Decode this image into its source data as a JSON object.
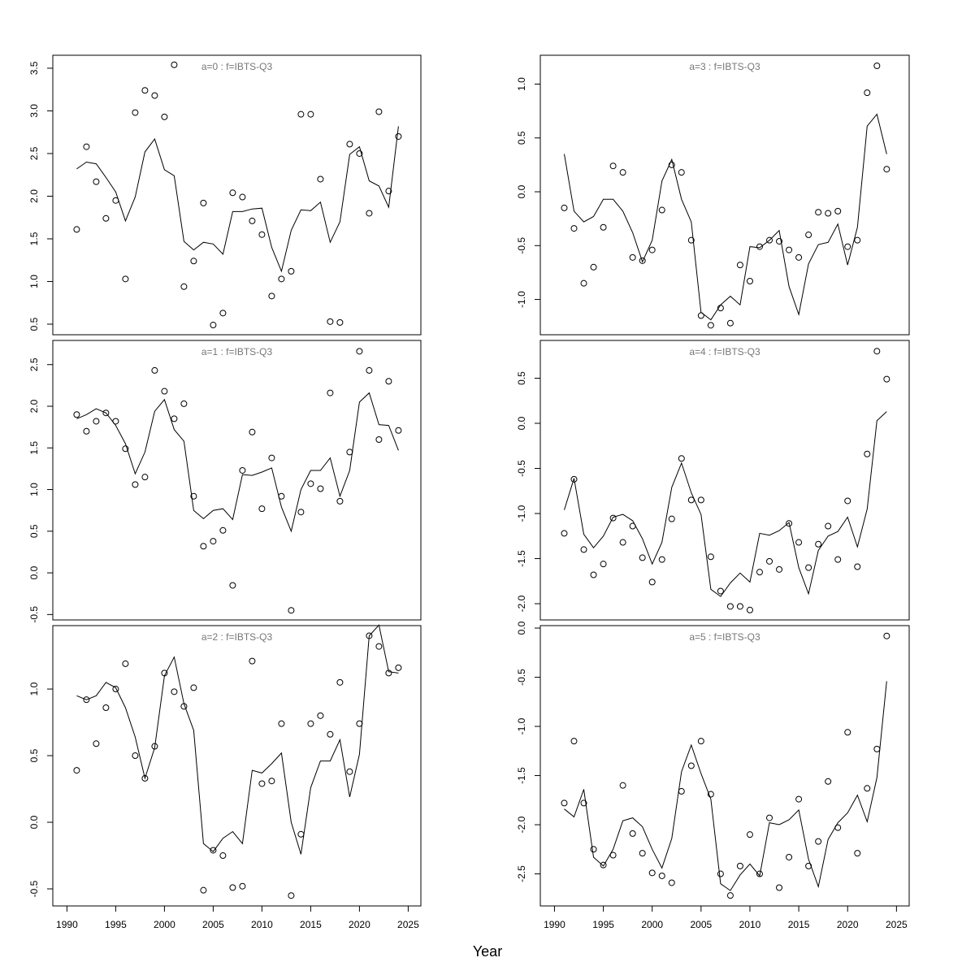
{
  "xlabel": "Year",
  "chart_data": [
    {
      "type": "line",
      "title": "a=0  :  f=IBTS-Q3",
      "x": [
        1991,
        1992,
        1993,
        1994,
        1995,
        1996,
        1997,
        1998,
        1999,
        2000,
        2001,
        2002,
        2003,
        2004,
        2005,
        2006,
        2007,
        2008,
        2009,
        2010,
        2011,
        2012,
        2013,
        2014,
        2015,
        2016,
        2017,
        2018,
        2019,
        2020,
        2021,
        2022,
        2023,
        2024
      ],
      "series": [
        {
          "style": "line",
          "color": "#000000",
          "values": [
            2.32,
            2.4,
            2.38,
            2.22,
            2.05,
            1.71,
            1.99,
            2.52,
            2.67,
            2.31,
            2.24,
            1.47,
            1.37,
            1.46,
            1.44,
            1.32,
            1.82,
            1.82,
            1.85,
            1.86,
            1.4,
            1.12,
            1.6,
            1.84,
            1.83,
            1.93,
            1.46,
            1.7,
            2.49,
            2.58,
            2.18,
            2.12,
            1.87,
            2.82
          ]
        },
        {
          "style": "points",
          "color": "#000000",
          "values": [
            1.61,
            2.58,
            2.17,
            1.74,
            1.95,
            1.03,
            2.98,
            3.24,
            3.18,
            2.93,
            3.54,
            0.94,
            1.24,
            1.92,
            0.49,
            0.63,
            2.04,
            1.99,
            1.71,
            1.55,
            0.83,
            1.03,
            1.12,
            2.96,
            2.96,
            2.2,
            0.53,
            0.52,
            2.61,
            2.5,
            1.8,
            2.99,
            2.06,
            2.7
          ]
        }
      ],
      "xlim": [
        1988.55,
        2026.3
      ],
      "ylim": [
        0.376,
        3.652
      ],
      "yticks": [
        0.5,
        {
          "value": 1,
          "label": "1.0"
        },
        1.5,
        {
          "value": 2,
          "label": "2.0"
        },
        2.5,
        {
          "value": 3,
          "label": "3.0"
        },
        3.5
      ]
    },
    {
      "type": "line",
      "title": "a=1  :  f=IBTS-Q3",
      "x": [
        1991,
        1992,
        1993,
        1994,
        1995,
        1996,
        1997,
        1998,
        1999,
        2000,
        2001,
        2002,
        2003,
        2004,
        2005,
        2006,
        2007,
        2008,
        2009,
        2010,
        2011,
        2012,
        2013,
        2014,
        2015,
        2016,
        2017,
        2018,
        2019,
        2020,
        2021,
        2022,
        2023,
        2024
      ],
      "series": [
        {
          "style": "line",
          "color": "#000000",
          "values": [
            1.85,
            1.9,
            1.97,
            1.92,
            1.77,
            1.55,
            1.19,
            1.45,
            1.94,
            2.08,
            1.72,
            1.58,
            0.75,
            0.65,
            0.75,
            0.77,
            0.64,
            1.18,
            1.17,
            1.21,
            1.26,
            0.79,
            0.5,
            1.0,
            1.23,
            1.23,
            1.38,
            0.92,
            1.23,
            2.05,
            2.16,
            1.78,
            1.77,
            1.47
          ]
        },
        {
          "style": "points",
          "color": "#000000",
          "values": [
            1.9,
            1.7,
            1.82,
            1.92,
            1.82,
            1.49,
            1.06,
            1.15,
            2.43,
            2.18,
            1.85,
            2.03,
            0.92,
            0.32,
            0.38,
            0.51,
            -0.15,
            1.23,
            1.69,
            0.77,
            1.38,
            0.92,
            -0.45,
            0.73,
            1.07,
            1.01,
            2.16,
            0.86,
            1.45,
            2.66,
            2.43,
            1.6,
            2.3,
            1.71
          ]
        }
      ],
      "xlim": [
        1988.55,
        2026.3
      ],
      "ylim": [
        -0.565,
        2.79
      ],
      "yticks": [
        -0.5,
        {
          "value": 0,
          "label": "0.0"
        },
        0.5,
        {
          "value": 1,
          "label": "1.0"
        },
        1.5,
        {
          "value": 2,
          "label": "2.0"
        },
        2.5
      ]
    },
    {
      "type": "line",
      "title": "a=2  :  f=IBTS-Q3",
      "x": [
        1991,
        1992,
        1993,
        1994,
        1995,
        1996,
        1997,
        1998,
        1999,
        2000,
        2001,
        2002,
        2003,
        2004,
        2005,
        2006,
        2007,
        2008,
        2009,
        2010,
        2011,
        2012,
        2013,
        2014,
        2015,
        2016,
        2017,
        2018,
        2019,
        2020,
        2021,
        2022,
        2023,
        2024
      ],
      "series": [
        {
          "style": "line",
          "color": "#000000",
          "values": [
            0.95,
            0.92,
            0.95,
            1.05,
            1.01,
            0.86,
            0.64,
            0.33,
            0.56,
            1.1,
            1.24,
            0.89,
            0.69,
            -0.16,
            -0.22,
            -0.12,
            -0.07,
            -0.16,
            0.39,
            0.37,
            0.44,
            0.52,
            0.0,
            -0.24,
            0.26,
            0.46,
            0.46,
            0.62,
            0.19,
            0.51,
            1.4,
            1.48,
            1.13,
            1.12
          ]
        },
        {
          "style": "points",
          "color": "#000000",
          "values": [
            0.39,
            0.92,
            0.59,
            0.86,
            1.0,
            1.19,
            0.5,
            0.33,
            0.57,
            1.12,
            0.98,
            0.87,
            1.01,
            -0.51,
            -0.21,
            -0.25,
            -0.49,
            -0.48,
            1.21,
            0.29,
            0.31,
            0.74,
            -0.55,
            -0.09,
            0.74,
            0.8,
            0.66,
            1.05,
            0.38,
            0.74,
            1.4,
            1.32,
            1.12,
            1.16
          ]
        }
      ],
      "xlim": [
        1988.55,
        2026.3
      ],
      "ylim": [
        -0.628,
        1.476
      ],
      "xticks": [
        1990,
        1995,
        2000,
        2005,
        2010,
        2015,
        2020,
        2025
      ],
      "yticks": [
        -0.5,
        {
          "value": 0,
          "label": "0.0"
        },
        0.5,
        {
          "value": 1,
          "label": "1.0"
        }
      ]
    },
    {
      "type": "line",
      "title": "a=3  :  f=IBTS-Q3",
      "x": [
        1991,
        1992,
        1993,
        1994,
        1995,
        1996,
        1997,
        1998,
        1999,
        2000,
        2001,
        2002,
        2003,
        2004,
        2005,
        2006,
        2007,
        2008,
        2009,
        2010,
        2011,
        2012,
        2013,
        2014,
        2015,
        2016,
        2017,
        2018,
        2019,
        2020,
        2021,
        2022,
        2023,
        2024
      ],
      "series": [
        {
          "style": "line",
          "color": "#000000",
          "values": [
            0.35,
            -0.18,
            -0.28,
            -0.23,
            -0.07,
            -0.07,
            -0.18,
            -0.38,
            -0.65,
            -0.45,
            0.1,
            0.3,
            -0.07,
            -0.28,
            -1.12,
            -1.19,
            -1.05,
            -0.97,
            -1.05,
            -0.51,
            -0.52,
            -0.45,
            -0.36,
            -0.88,
            -1.14,
            -0.67,
            -0.49,
            -0.47,
            -0.3,
            -0.68,
            -0.33,
            0.61,
            0.72,
            0.35
          ]
        },
        {
          "style": "points",
          "color": "#000000",
          "values": [
            -0.15,
            -0.34,
            -0.85,
            -0.7,
            -0.33,
            0.24,
            0.18,
            -0.61,
            -0.64,
            -0.54,
            -0.17,
            0.25,
            0.18,
            -0.45,
            -1.15,
            -1.24,
            -1.08,
            -1.22,
            -0.68,
            -0.83,
            -0.51,
            -0.45,
            -0.46,
            -0.54,
            -0.61,
            -0.4,
            -0.19,
            -0.2,
            -0.18,
            -0.51,
            -0.45,
            0.92,
            1.17,
            0.21
          ]
        }
      ],
      "xlim": [
        1988.55,
        2026.3
      ],
      "ylim": [
        -1.328,
        1.268
      ],
      "yticks": [
        {
          "value": -1,
          "label": "-1.0"
        },
        -0.5,
        {
          "value": 0,
          "label": "0.0"
        },
        0.5,
        {
          "value": 1,
          "label": "1.0"
        }
      ]
    },
    {
      "type": "line",
      "title": "a=4  :  f=IBTS-Q3",
      "x": [
        1991,
        1992,
        1993,
        1994,
        1995,
        1996,
        1997,
        1998,
        1999,
        2000,
        2001,
        2002,
        2003,
        2004,
        2005,
        2006,
        2007,
        2008,
        2009,
        2010,
        2011,
        2012,
        2013,
        2014,
        2015,
        2016,
        2017,
        2018,
        2019,
        2020,
        2021,
        2022,
        2023,
        2024
      ],
      "series": [
        {
          "style": "line",
          "color": "#000000",
          "values": [
            -0.96,
            -0.61,
            -1.23,
            -1.38,
            -1.25,
            -1.04,
            -1.01,
            -1.08,
            -1.28,
            -1.56,
            -1.32,
            -0.71,
            -0.44,
            -0.77,
            -1.01,
            -1.84,
            -1.92,
            -1.77,
            -1.66,
            -1.76,
            -1.22,
            -1.24,
            -1.19,
            -1.1,
            -1.6,
            -1.89,
            -1.41,
            -1.25,
            -1.2,
            -1.04,
            -1.37,
            -0.95,
            0.03,
            0.13
          ]
        },
        {
          "style": "points",
          "color": "#000000",
          "values": [
            -1.22,
            -0.62,
            -1.4,
            -1.68,
            -1.56,
            -1.05,
            -1.32,
            -1.14,
            -1.49,
            -1.76,
            -1.51,
            -1.06,
            -0.39,
            -0.85,
            -0.85,
            -1.48,
            -1.86,
            -2.03,
            -2.03,
            -2.07,
            -1.65,
            -1.53,
            -1.62,
            -1.11,
            -1.32,
            -1.6,
            -1.34,
            -1.14,
            -1.51,
            -0.86,
            -1.59,
            -0.34,
            0.8,
            0.49
          ]
        }
      ],
      "xlim": [
        1988.55,
        2026.3
      ],
      "ylim": [
        -2.18,
        0.919
      ],
      "yticks": [
        {
          "value": -2,
          "label": "-2.0"
        },
        -1.5,
        {
          "value": -1,
          "label": "-1.0"
        },
        -0.5,
        {
          "value": 0,
          "label": "0.0"
        },
        0.5
      ]
    },
    {
      "type": "line",
      "title": "a=5  :  f=IBTS-Q3",
      "x": [
        1991,
        1992,
        1993,
        1994,
        1995,
        1996,
        1997,
        1998,
        1999,
        2000,
        2001,
        2002,
        2003,
        2004,
        2005,
        2006,
        2007,
        2008,
        2009,
        2010,
        2011,
        2012,
        2013,
        2014,
        2015,
        2016,
        2017,
        2018,
        2019,
        2020,
        2021,
        2022,
        2023,
        2024
      ],
      "series": [
        {
          "style": "line",
          "color": "#000000",
          "values": [
            -1.84,
            -1.92,
            -1.64,
            -2.33,
            -2.42,
            -2.25,
            -1.96,
            -1.93,
            -2.02,
            -2.25,
            -2.44,
            -2.14,
            -1.46,
            -1.19,
            -1.48,
            -1.74,
            -2.6,
            -2.67,
            -2.51,
            -2.4,
            -2.52,
            -1.98,
            -2.0,
            -1.95,
            -1.85,
            -2.35,
            -2.63,
            -2.15,
            -1.98,
            -1.88,
            -1.7,
            -1.97,
            -1.52,
            -0.54
          ]
        },
        {
          "style": "points",
          "color": "#000000",
          "values": [
            -1.78,
            -1.15,
            -1.78,
            -2.25,
            -2.41,
            -2.31,
            -1.6,
            -2.09,
            -2.29,
            -2.49,
            -2.52,
            -2.59,
            -1.66,
            -1.4,
            -1.15,
            -1.69,
            -2.5,
            -2.72,
            -2.42,
            -2.1,
            -2.5,
            -1.93,
            -2.64,
            -2.33,
            -1.74,
            -2.42,
            -2.17,
            -1.56,
            -2.03,
            -1.06,
            -2.29,
            -1.63,
            -1.23,
            -0.08
          ]
        }
      ],
      "xlim": [
        1988.55,
        2026.3
      ],
      "ylim": [
        -2.826,
        0.025
      ],
      "xticks": [
        1990,
        1995,
        2000,
        2005,
        2010,
        2015,
        2020,
        2025
      ],
      "yticks": [
        -2.5,
        {
          "value": -2,
          "label": "-2.0"
        },
        -1.5,
        {
          "value": -1,
          "label": "-1.0"
        },
        -0.5,
        {
          "value": 0,
          "label": "0.0"
        }
      ]
    }
  ]
}
